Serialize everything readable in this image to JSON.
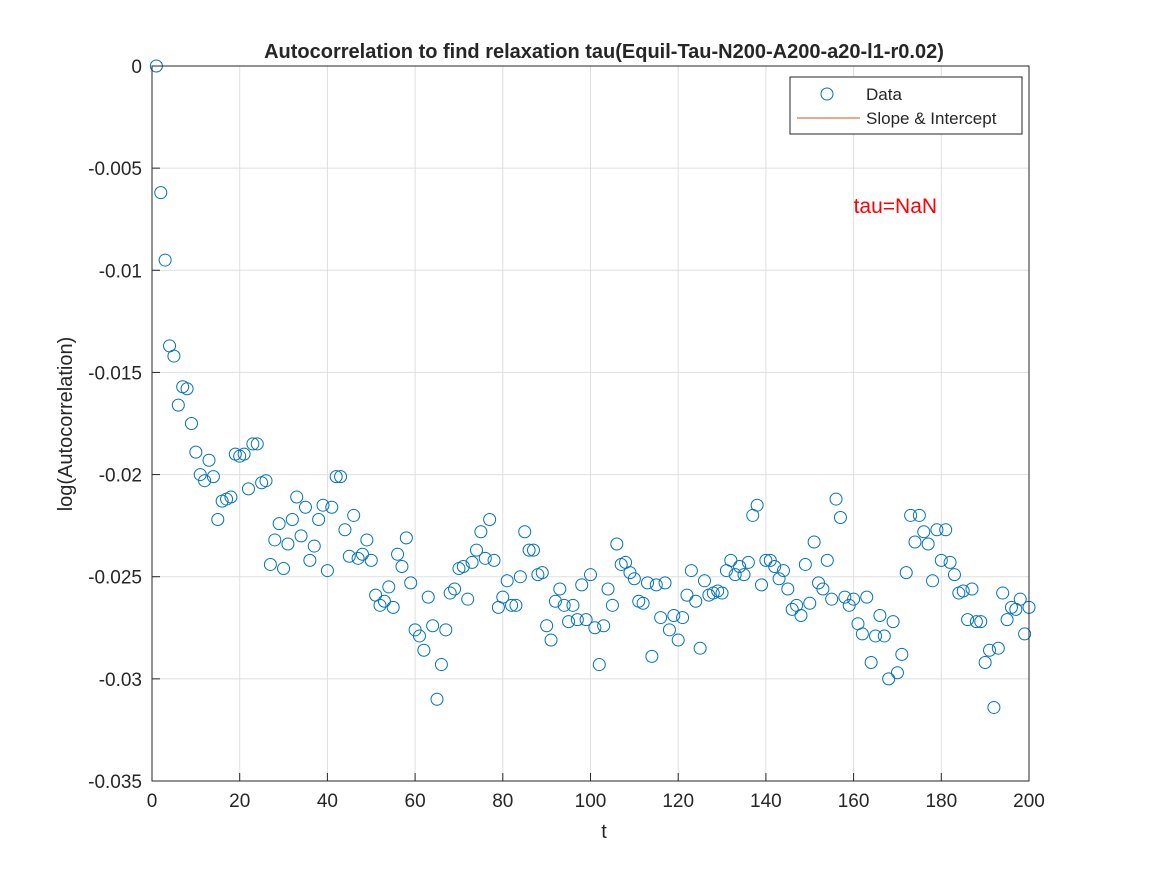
{
  "chart_data": {
    "type": "scatter",
    "title": "Autocorrelation to find relaxation tau(Equil-Tau-N200-A200-a20-l1-r0.02)",
    "xlabel": "t",
    "ylabel": "log(Autocorrelation)",
    "xlim": [
      0,
      200
    ],
    "ylim": [
      -0.035,
      0
    ],
    "xticks": [
      0,
      20,
      40,
      60,
      80,
      100,
      120,
      140,
      160,
      180,
      200
    ],
    "yticks": [
      0,
      -0.005,
      -0.01,
      -0.015,
      -0.02,
      -0.025,
      -0.03,
      -0.035
    ],
    "xtick_labels": [
      "0",
      "20",
      "40",
      "60",
      "80",
      "100",
      "120",
      "140",
      "160",
      "180",
      "200"
    ],
    "ytick_labels": [
      "0",
      "-0.005",
      "-0.01",
      "-0.015",
      "-0.02",
      "-0.025",
      "-0.03",
      "-0.035"
    ],
    "grid": true,
    "legend": {
      "location": "top-right",
      "entries": [
        {
          "label": "Data",
          "marker": "circle",
          "color": "#0072BD"
        },
        {
          "label": "Slope & Intercept",
          "marker": "line",
          "color": "#D95319"
        }
      ]
    },
    "annotation": {
      "text": "tau=NaN",
      "color": "#FF0000",
      "x": 160,
      "y": -0.0072
    },
    "series": [
      {
        "name": "Data",
        "color": "#0072BD",
        "marker": "circle",
        "x": [
          1,
          2,
          3,
          4,
          5,
          6,
          7,
          8,
          9,
          10,
          11,
          12,
          13,
          14,
          15,
          16,
          17,
          18,
          19,
          20,
          21,
          22,
          23,
          24,
          25,
          26,
          27,
          28,
          29,
          30,
          31,
          32,
          33,
          34,
          35,
          36,
          37,
          38,
          39,
          40,
          41,
          42,
          43,
          44,
          45,
          46,
          47,
          48,
          49,
          50,
          51,
          52,
          53,
          54,
          55,
          56,
          57,
          58,
          59,
          60,
          61,
          62,
          63,
          64,
          65,
          66,
          67,
          68,
          69,
          70,
          71,
          72,
          73,
          74,
          75,
          76,
          77,
          78,
          79,
          80,
          81,
          82,
          83,
          84,
          85,
          86,
          87,
          88,
          89,
          90,
          91,
          92,
          93,
          94,
          95,
          96,
          97,
          98,
          99,
          100,
          101,
          102,
          103,
          104,
          105,
          106,
          107,
          108,
          109,
          110,
          111,
          112,
          113,
          114,
          115,
          116,
          117,
          118,
          119,
          120,
          121,
          122,
          123,
          124,
          125,
          126,
          127,
          128,
          129,
          130,
          131,
          132,
          133,
          134,
          135,
          136,
          137,
          138,
          139,
          140,
          141,
          142,
          143,
          144,
          145,
          146,
          147,
          148,
          149,
          150,
          151,
          152,
          153,
          154,
          155,
          156,
          157,
          158,
          159,
          160,
          161,
          162,
          163,
          164,
          165,
          166,
          167,
          168,
          169,
          170,
          171,
          172,
          173,
          174,
          175,
          176,
          177,
          178,
          179,
          180,
          181,
          182,
          183,
          184,
          185,
          186,
          187,
          188,
          189,
          190,
          191,
          192,
          193,
          194,
          195,
          196,
          197,
          198,
          199,
          200
        ],
        "y": [
          0,
          -0.0062,
          -0.0095,
          -0.0137,
          -0.0142,
          -0.0166,
          -0.0157,
          -0.0158,
          -0.0175,
          -0.0189,
          -0.02,
          -0.0203,
          -0.0193,
          -0.0201,
          -0.0222,
          -0.0213,
          -0.0212,
          -0.0211,
          -0.019,
          -0.0191,
          -0.019,
          -0.0207,
          -0.0185,
          -0.0185,
          -0.0204,
          -0.0203,
          -0.0244,
          -0.0232,
          -0.0224,
          -0.0246,
          -0.0234,
          -0.0222,
          -0.0211,
          -0.023,
          -0.0216,
          -0.0242,
          -0.0235,
          -0.0222,
          -0.0215,
          -0.0247,
          -0.0216,
          -0.0201,
          -0.0201,
          -0.0227,
          -0.024,
          -0.022,
          -0.0241,
          -0.0239,
          -0.0232,
          -0.0242,
          -0.0259,
          -0.0264,
          -0.0262,
          -0.0255,
          -0.0265,
          -0.0239,
          -0.0245,
          -0.0231,
          -0.0253,
          -0.0276,
          -0.0279,
          -0.0286,
          -0.026,
          -0.0274,
          -0.031,
          -0.0293,
          -0.0276,
          -0.0258,
          -0.0256,
          -0.0246,
          -0.0245,
          -0.0261,
          -0.0243,
          -0.0237,
          -0.0228,
          -0.0241,
          -0.0222,
          -0.0242,
          -0.0265,
          -0.026,
          -0.0252,
          -0.0264,
          -0.0264,
          -0.025,
          -0.0228,
          -0.0237,
          -0.0237,
          -0.0249,
          -0.0248,
          -0.0274,
          -0.0281,
          -0.0262,
          -0.0256,
          -0.0264,
          -0.0272,
          -0.0264,
          -0.0271,
          -0.0254,
          -0.0271,
          -0.0249,
          -0.0275,
          -0.0293,
          -0.0274,
          -0.0256,
          -0.0264,
          -0.0234,
          -0.0244,
          -0.0243,
          -0.0248,
          -0.0251,
          -0.0262,
          -0.0263,
          -0.0253,
          -0.0289,
          -0.0254,
          -0.027,
          -0.0253,
          -0.0276,
          -0.0269,
          -0.0281,
          -0.027,
          -0.0259,
          -0.0247,
          -0.0262,
          -0.0285,
          -0.0252,
          -0.0259,
          -0.0258,
          -0.0257,
          -0.0258,
          -0.0247,
          -0.0242,
          -0.0249,
          -0.0245,
          -0.0249,
          -0.0243,
          -0.022,
          -0.0215,
          -0.0254,
          -0.0242,
          -0.0242,
          -0.0245,
          -0.0251,
          -0.0247,
          -0.0256,
          -0.0266,
          -0.0264,
          -0.0269,
          -0.0244,
          -0.0263,
          -0.0233,
          -0.0253,
          -0.0256,
          -0.0242,
          -0.0261,
          -0.0212,
          -0.0221,
          -0.026,
          -0.0264,
          -0.0261,
          -0.0273,
          -0.0278,
          -0.026,
          -0.0292,
          -0.0279,
          -0.0269,
          -0.0279,
          -0.03,
          -0.0272,
          -0.0297,
          -0.0288,
          -0.0248,
          -0.022,
          -0.0233,
          -0.022,
          -0.0228,
          -0.0234,
          -0.0252,
          -0.0227,
          -0.0242,
          -0.0227,
          -0.0243,
          -0.0249,
          -0.0258,
          -0.0257,
          -0.0271,
          -0.0256,
          -0.0272,
          -0.0272,
          -0.0292,
          -0.0286,
          -0.0314,
          -0.0285,
          -0.0258,
          -0.0271,
          -0.0265,
          -0.0266,
          -0.0261,
          -0.0278,
          -0.0265
        ]
      },
      {
        "name": "Slope & Intercept",
        "color": "#D95319",
        "marker": "line",
        "x": [],
        "y": []
      }
    ]
  }
}
